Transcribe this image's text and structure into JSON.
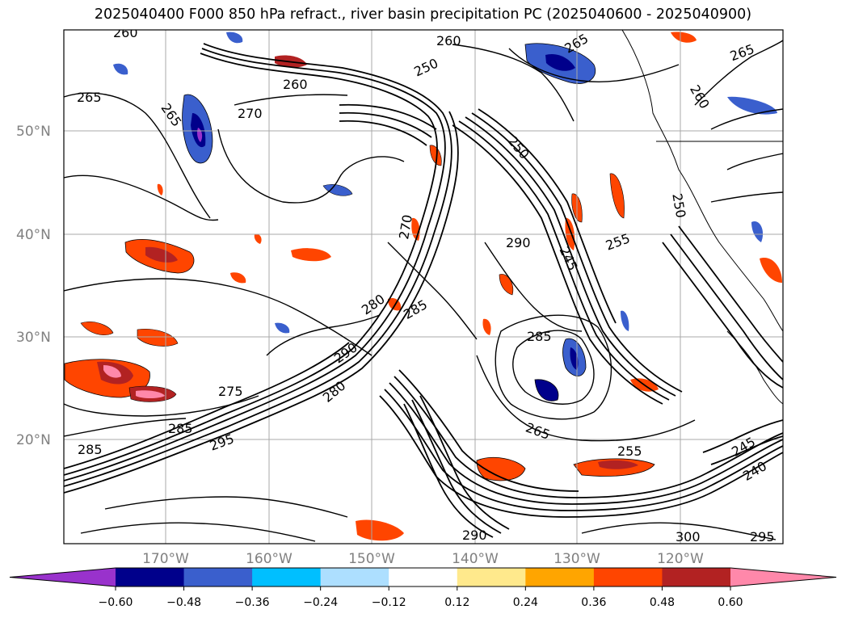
{
  "title": "2025040400 F000 850 hPa refract., river basin precipitation PC (2025040600 - 2025040900)",
  "map": {
    "lat_labels": [
      "50°N",
      "40°N",
      "30°N",
      "20°N"
    ],
    "lon_labels": [
      "170°W",
      "160°W",
      "150°W",
      "140°W",
      "130°W",
      "120°W"
    ],
    "gridlines": true,
    "coastlines": true
  },
  "contour_labels": [
    "260",
    "265",
    "270",
    "265",
    "250",
    "260",
    "265",
    "260",
    "265",
    "250",
    "245",
    "250",
    "255",
    "260",
    "270",
    "285",
    "280",
    "290",
    "285",
    "280",
    "275",
    "285",
    "295",
    "290",
    "265",
    "255",
    "245",
    "240",
    "300",
    "290",
    "295",
    "285"
  ],
  "colorbar": {
    "ticks": [
      "−0.60",
      "−0.48",
      "−0.36",
      "−0.24",
      "−0.12",
      "0.12",
      "0.24",
      "0.36",
      "0.48",
      "0.60"
    ],
    "colors": [
      "#9932CC",
      "#00008B",
      "#3A5FCD",
      "#00BFFF",
      "#ADDFFF",
      "#FFFFFF",
      "#FFE98C",
      "#FFA500",
      "#FF4500",
      "#B22222",
      "#FF88AA"
    ],
    "extend": "both"
  }
}
